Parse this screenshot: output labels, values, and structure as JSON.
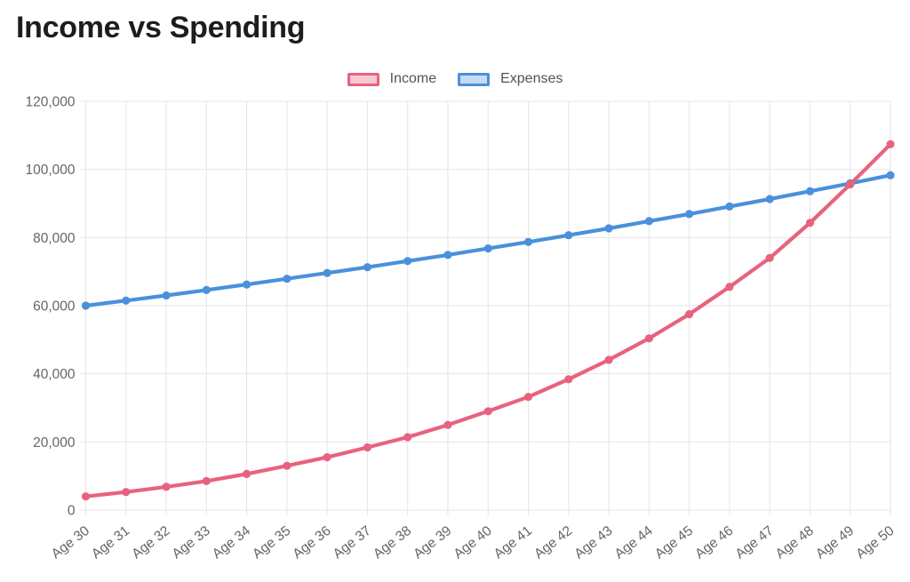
{
  "chart_data": {
    "type": "line",
    "title": "Income vs Spending",
    "x_categories": [
      "Age 30",
      "Age 31",
      "Age 32",
      "Age 33",
      "Age 34",
      "Age 35",
      "Age 36",
      "Age 37",
      "Age 38",
      "Age 39",
      "Age 40",
      "Age 41",
      "Age 42",
      "Age 43",
      "Age 44",
      "Age 45",
      "Age 46",
      "Age 47",
      "Age 48",
      "Age 49",
      "Age 50"
    ],
    "series": [
      {
        "name": "Income",
        "line_color": "#e8627e",
        "legend_fill": "#f8c9d3",
        "values": [
          4000,
          5300,
          6800,
          8500,
          10600,
          13000,
          15500,
          18400,
          21400,
          25000,
          29000,
          33200,
          38400,
          44100,
          50400,
          57500,
          65500,
          74000,
          84300,
          95600,
          107400
        ]
      },
      {
        "name": "Expenses",
        "line_color": "#4a90dc",
        "legend_fill": "#c6dbf3",
        "values": [
          60000,
          61500,
          63000,
          64600,
          66200,
          67900,
          69600,
          71300,
          73100,
          74900,
          76800,
          78700,
          80700,
          82700,
          84800,
          86900,
          89100,
          91300,
          93600,
          95900,
          98300
        ]
      }
    ],
    "ylim": [
      0,
      120000
    ],
    "y_ticks": [
      0,
      20000,
      40000,
      60000,
      80000,
      100000,
      120000
    ],
    "y_tick_labels": [
      "0",
      "20,000",
      "40,000",
      "60,000",
      "80,000",
      "100,000",
      "120,000"
    ],
    "grid": true,
    "legend_position": "top",
    "x_label_rotation_deg": -38,
    "grid_color": "#e5e5e5",
    "tick_label_color": "#666666",
    "title_color": "#1d1d1f"
  }
}
